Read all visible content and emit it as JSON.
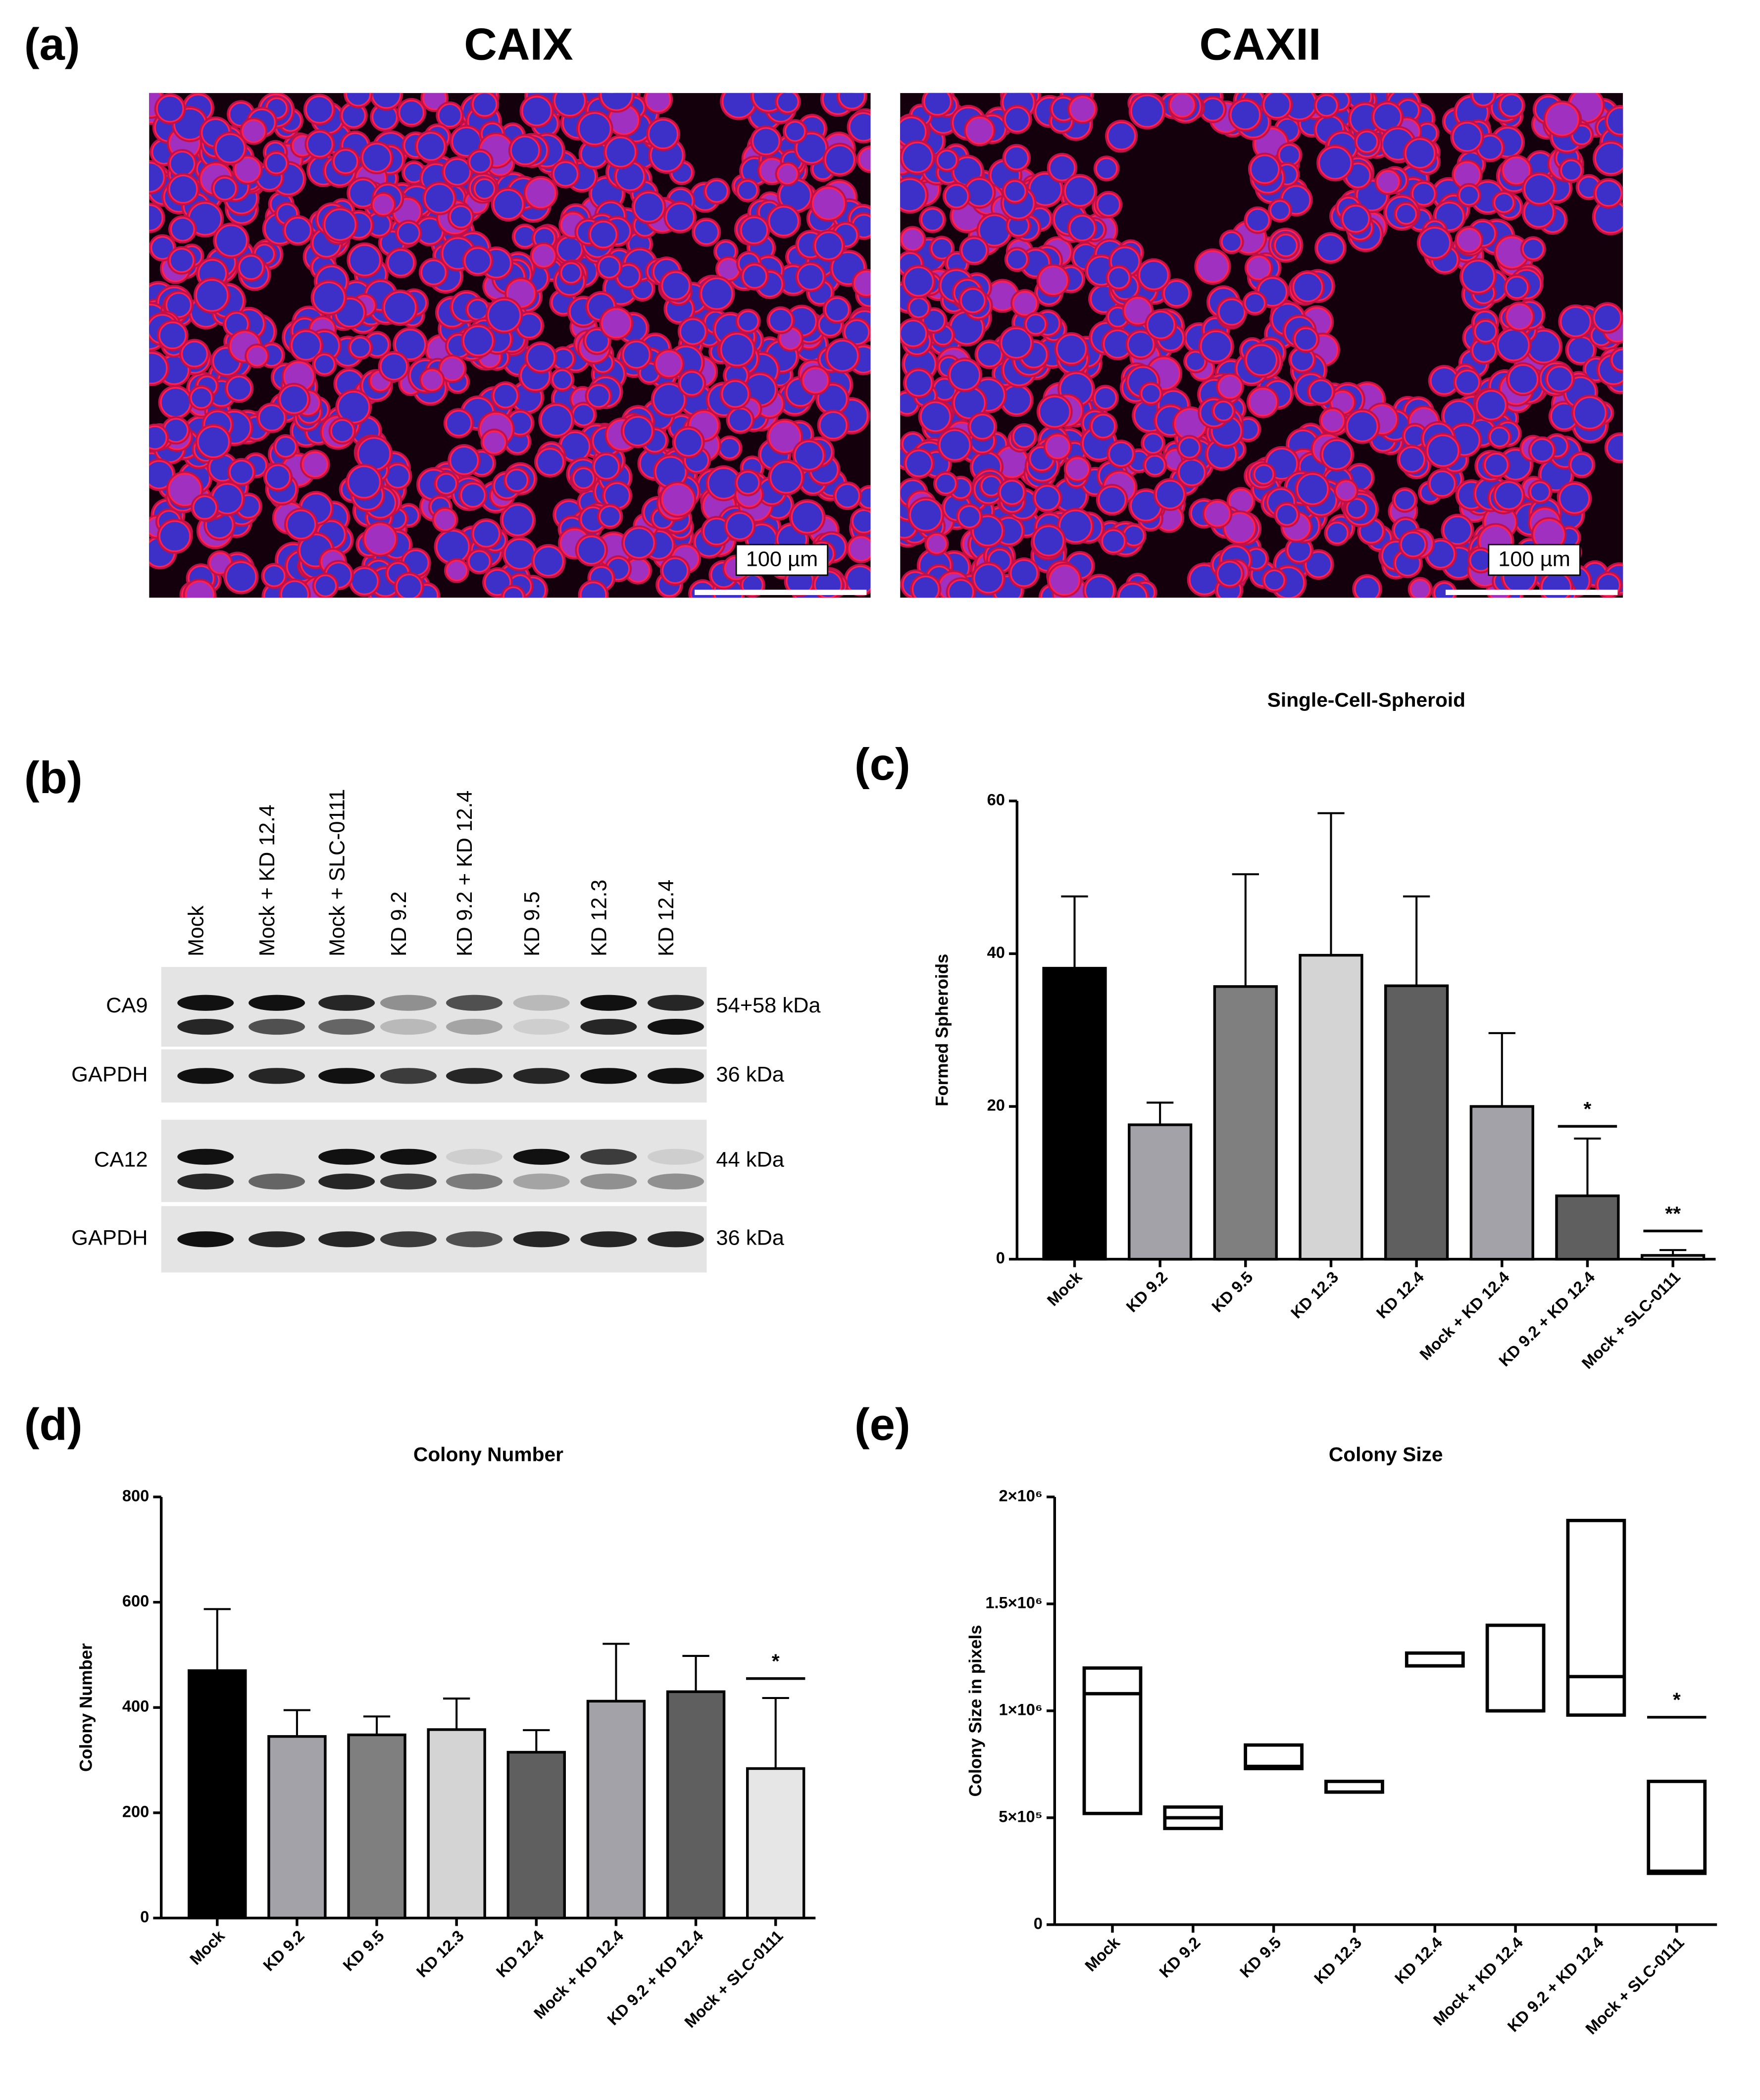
{
  "panel_labels": [
    "(a)",
    "(b)",
    "(c)",
    "(d)",
    "(e)"
  ],
  "images": {
    "titles": [
      "CAIX",
      "CAXII"
    ],
    "scale_bar": "100 µm"
  },
  "blot": {
    "lanes": [
      "Mock",
      "Mock + KD 12.4",
      "Mock + SLC-0111",
      "KD 9.2",
      "KD 9.2 + KD 12.4",
      "KD 9.5",
      "KD 12.3",
      "KD 12.4"
    ],
    "rows": [
      {
        "label": "CA9",
        "size": "54+58 kDa"
      },
      {
        "label": "GAPDH",
        "size": "36 kDa"
      },
      {
        "label": "CA12",
        "size": "44 kDa"
      },
      {
        "label": "GAPDH",
        "size": "36 kDa"
      }
    ]
  },
  "chart_data": [
    {
      "type": "bar",
      "title": "Single-Cell-Spheroid",
      "ylabel": "Formed Spheroids",
      "categories": [
        "Mock",
        "KD 9.2",
        "KD 9.5",
        "KD 12.3",
        "KD 12.4",
        "Mock + KD 12.4",
        "KD 9.2 + KD 12.4",
        "Mock + SLC-0111"
      ],
      "values": [
        38.1,
        17.6,
        35.7,
        39.8,
        35.8,
        20,
        8.3,
        0.5
      ],
      "errors": [
        9.4,
        2.9,
        14.7,
        18.6,
        11.7,
        9.6,
        7.5,
        0.7
      ],
      "colors": [
        "#000000",
        "#a2a2a8",
        "#7f7f7f",
        "#d4d4d4",
        "#5f5f5f",
        "#a2a2a8",
        "#5f5f5f",
        "#e6e6e6"
      ],
      "ylim": [
        0,
        60
      ],
      "yticks": [
        0,
        20,
        40,
        60
      ],
      "annotations": [
        {
          "text": "*",
          "category": "KD 9.2 + KD 12.4",
          "y": 17.4
        },
        {
          "text": "**",
          "category": "Mock + SLC-0111",
          "y": 3.7
        }
      ]
    },
    {
      "type": "bar",
      "title": "Colony Number",
      "ylabel": "Colony Number",
      "categories": [
        "Mock",
        "KD 9.2",
        "KD 9.5",
        "KD 12.3",
        "KD 12.4",
        "Mock + KD 12.4",
        "KD 9.2 + KD 12.4",
        "Mock + SLC-0111"
      ],
      "values": [
        470,
        345,
        348,
        358,
        315,
        412,
        430,
        284
      ],
      "errors": [
        117,
        50,
        35,
        59,
        42,
        109,
        68,
        134
      ],
      "colors": [
        "#000000",
        "#a2a2a8",
        "#7f7f7f",
        "#d4d4d4",
        "#5f5f5f",
        "#a2a2a8",
        "#5f5f5f",
        "#e6e6e6"
      ],
      "ylim": [
        0,
        800
      ],
      "yticks": [
        0,
        200,
        400,
        600,
        800
      ],
      "annotations": [
        {
          "text": "*",
          "category": "Mock + SLC-0111",
          "y": 455
        }
      ]
    },
    {
      "type": "floating_bar",
      "title": "Colony Size",
      "ylabel": "Colony Size in pixels",
      "categories": [
        "Mock",
        "KD 9.2",
        "KD 9.5",
        "KD 12.3",
        "KD 12.4",
        "Mock + KD 12.4",
        "KD 9.2 + KD 12.4",
        "Mock + SLC-0111"
      ],
      "low": [
        520000,
        450000,
        730000,
        620000,
        1210000,
        1000000,
        980000,
        240000
      ],
      "high": [
        1200000,
        550000,
        840000,
        670000,
        1270000,
        1400000,
        1890000,
        670000
      ],
      "mid": [
        1080000,
        500000,
        740000,
        620000,
        1210000,
        1000000,
        1160000,
        250000
      ],
      "ylim": [
        0,
        2000000
      ],
      "yticks": [
        0,
        {
          "value": 500000,
          "label": "5×10⁵"
        },
        {
          "value": 1000000,
          "label": "1×10⁶"
        },
        {
          "value": 1500000,
          "label": "1.5×10⁶"
        },
        {
          "value": 2000000,
          "label": "2×10⁶"
        }
      ],
      "annotations": [
        {
          "text": "*",
          "category": "Mock + SLC-0111",
          "y": 970000
        }
      ]
    }
  ]
}
